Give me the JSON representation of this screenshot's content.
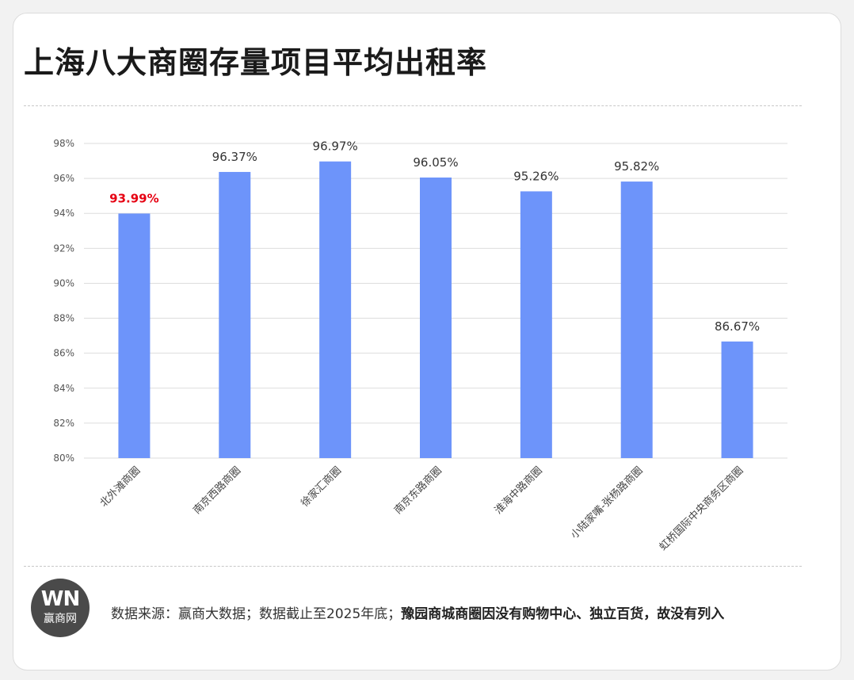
{
  "title": "上海八大商圈存量项目平均出租率",
  "logo": {
    "mark": "WN",
    "text": "赢商网"
  },
  "footer": {
    "source": "数据来源：赢商大数据；数据截止至2025年底；",
    "note": "豫园商城商圈因没有购物中心、独立百货，故没有列入"
  },
  "chart_data": {
    "type": "bar",
    "categories": [
      "北外滩商圈",
      "南京西路商圈",
      "徐家汇商圈",
      "南京东路商圈",
      "淮海中路商圈",
      "小陆家嘴-张杨路商圈",
      "虹桥国际中央商务区商圈"
    ],
    "values": [
      93.99,
      96.37,
      96.97,
      96.05,
      95.26,
      95.82,
      86.67
    ],
    "data_labels": [
      "93.99%",
      "96.37%",
      "96.97%",
      "96.05%",
      "95.26%",
      "95.82%",
      "86.67%"
    ],
    "highlight_index": 0,
    "ylim": [
      80,
      98
    ],
    "yticks": [
      80,
      82,
      84,
      86,
      88,
      90,
      92,
      94,
      96,
      98
    ],
    "ytick_labels": [
      "80%",
      "82%",
      "84%",
      "86%",
      "88%",
      "90%",
      "92%",
      "94%",
      "96%",
      "98%"
    ],
    "grid": true,
    "colors": {
      "bar": "#6d94fa",
      "highlight_label": "#e60012",
      "label": "#333333",
      "grid": "#dddddd"
    }
  }
}
